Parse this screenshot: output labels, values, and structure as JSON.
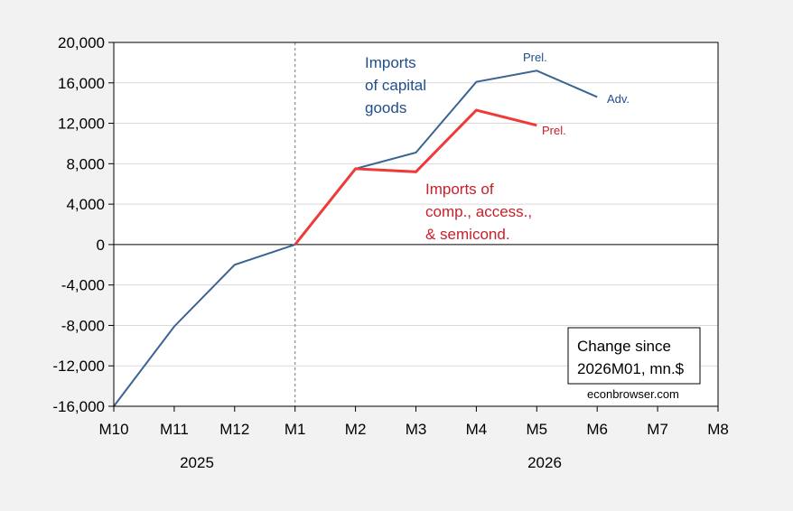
{
  "colors": {
    "background": "#f2f2f2",
    "plot_background": "#ffffff",
    "grid": "#d9d9d9",
    "capital_goods": "#3b6493",
    "computers": "#ef3a3a",
    "capital_label": "#1f4e8c",
    "computers_label": "#c8202a"
  },
  "chart_data": {
    "type": "line",
    "x_ticks": [
      "M10",
      "M11",
      "M12",
      "M1",
      "M2",
      "M3",
      "M4",
      "M5",
      "M6",
      "M7",
      "M8"
    ],
    "year_labels": [
      "2025",
      "2026"
    ],
    "ylim": [
      -16000,
      20000
    ],
    "y_ticks": [
      "20,000",
      "16,000",
      "12,000",
      "8,000",
      "4,000",
      "0",
      "-4,000",
      "-8,000",
      "-12,000",
      "-16,000"
    ],
    "y_tick_values": [
      20000,
      16000,
      12000,
      8000,
      4000,
      0,
      -4000,
      -8000,
      -12000,
      -16000
    ],
    "grid": "horizontal",
    "reference_line_x": "M1",
    "series": [
      {
        "key": "capital",
        "label_lines": [
          "Imports",
          "of capital",
          "goods"
        ],
        "x": [
          "M10",
          "M11",
          "M12",
          "M1",
          "M2",
          "M3",
          "M4",
          "M5",
          "M6"
        ],
        "values": [
          -16000,
          -8100,
          -2000,
          0,
          7500,
          9100,
          16100,
          17200,
          14600
        ]
      },
      {
        "key": "computers",
        "label_lines": [
          "Imports of",
          "comp., access.,",
          "& semicond."
        ],
        "x": [
          "M1",
          "M2",
          "M3",
          "M4",
          "M5"
        ],
        "values": [
          0,
          7500,
          7200,
          13300,
          11800
        ]
      }
    ],
    "annotations": [
      {
        "text": "Prel.",
        "series": "capital",
        "point": "M5"
      },
      {
        "text": "Adv.",
        "series": "capital",
        "point": "M6"
      },
      {
        "text": "Prel.",
        "series": "computers",
        "point": "M5"
      }
    ],
    "legend_box": {
      "lines": [
        "Change since",
        "2026M01, mn.$"
      ],
      "placement": "bottom-right"
    },
    "credit": "econbrowser.com"
  }
}
